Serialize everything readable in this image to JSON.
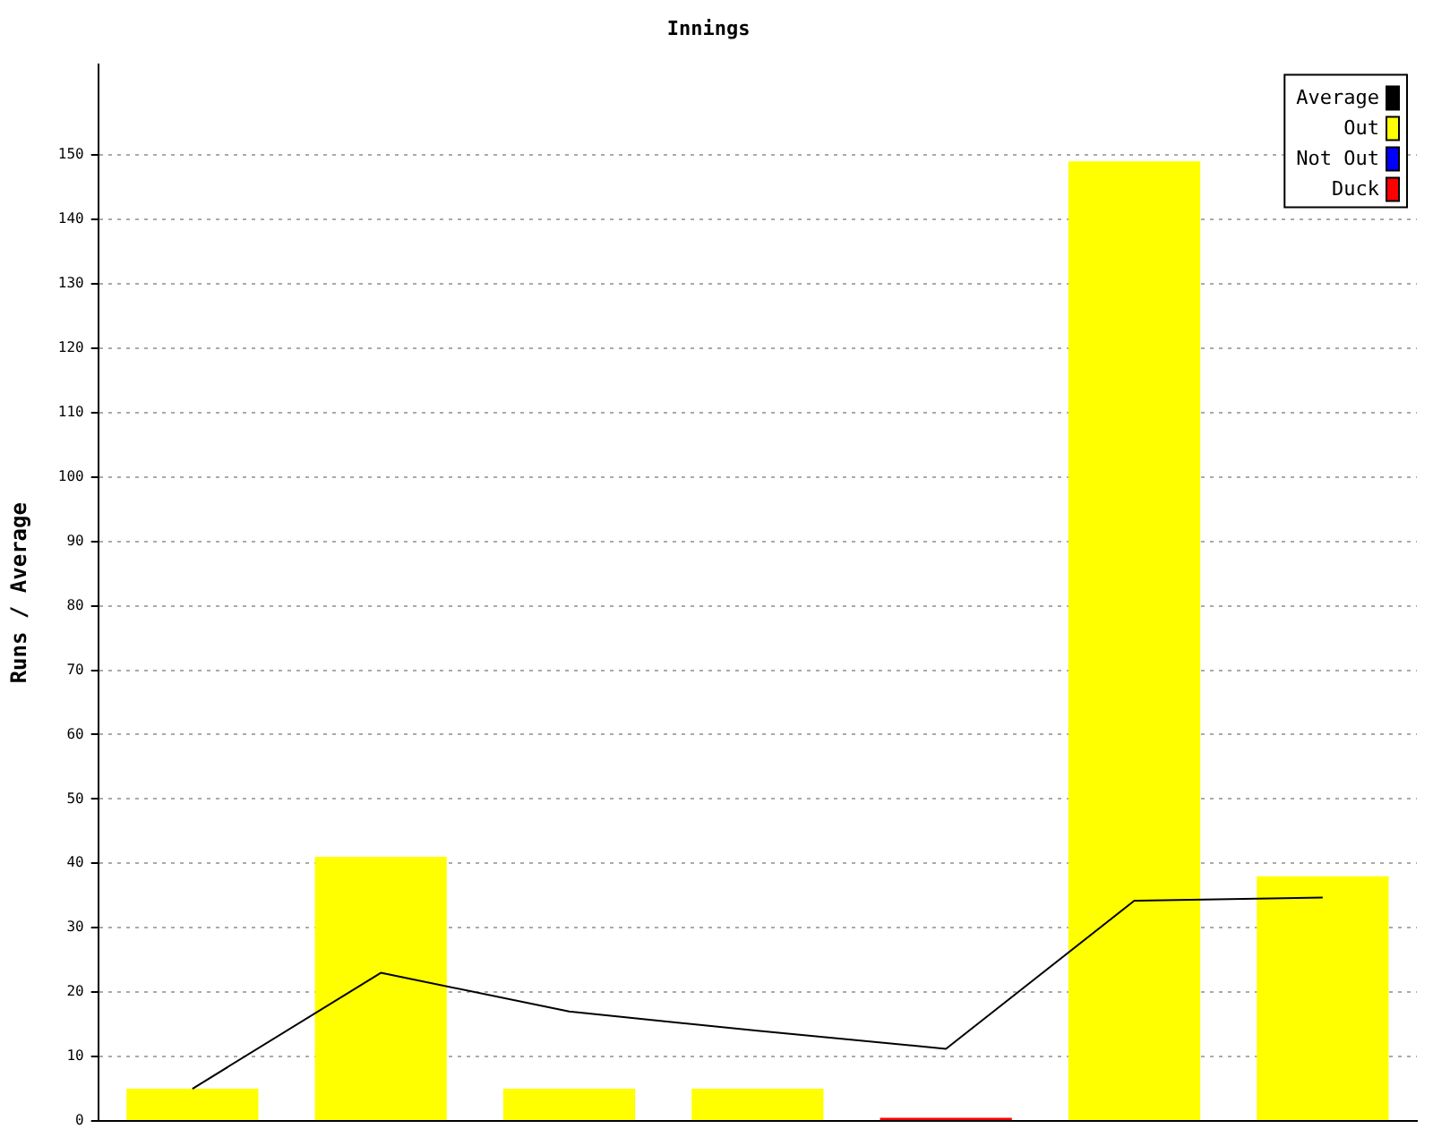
{
  "chart_data": {
    "type": "bar",
    "title": "Innings",
    "ylabel": "Runs / Average",
    "categories": [
      null,
      null,
      null,
      null,
      null,
      null,
      null
    ],
    "stacked": true,
    "series": [
      {
        "name": "Average",
        "type": "line",
        "color": "#000000",
        "values": [
          5,
          23,
          17,
          14,
          11.2,
          34.2,
          34.7
        ]
      },
      {
        "name": "Out",
        "color": "#ffff00",
        "values": [
          5,
          41,
          5,
          5,
          null,
          149,
          38
        ]
      },
      {
        "name": "Not Out",
        "color": "#0000ff",
        "values": [
          null,
          null,
          null,
          null,
          null,
          null,
          null
        ]
      },
      {
        "name": "Duck",
        "color": "#ff0000",
        "values": [
          null,
          null,
          null,
          null,
          0.5,
          null,
          null
        ]
      }
    ],
    "ylim": [
      0,
      164
    ],
    "yticks": [
      0,
      10,
      20,
      30,
      40,
      50,
      60,
      70,
      80,
      90,
      100,
      110,
      120,
      130,
      140,
      150
    ],
    "grid": "y",
    "legend": "top right",
    "marker": "none",
    "line_style": "solid"
  }
}
